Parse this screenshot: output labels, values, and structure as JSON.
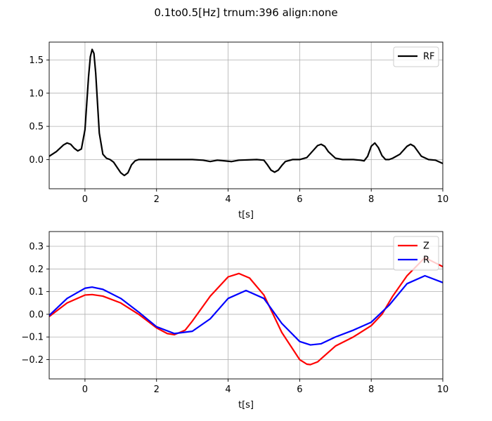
{
  "figure": {
    "title": "0.1to0.5[Hz] trnum:396 align:none"
  },
  "chart_data": [
    {
      "type": "line",
      "xlabel": "t[s]",
      "ylabel": "",
      "xlim": [
        -1,
        10
      ],
      "ylim": [
        -0.44,
        1.77
      ],
      "xticks": [
        0,
        2,
        4,
        6,
        8,
        10
      ],
      "yticks": [
        0.0,
        0.5,
        1.0,
        1.5
      ],
      "xtick_labels": [
        "0",
        "2",
        "4",
        "6",
        "8",
        "10"
      ],
      "ytick_labels": [
        "0.0",
        "0.5",
        "1.0",
        "1.5"
      ],
      "grid": true,
      "legend_position": "top-right",
      "series": [
        {
          "name": "RF",
          "color": "#000000",
          "x": [
            -1.0,
            -0.8,
            -0.6,
            -0.5,
            -0.4,
            -0.3,
            -0.2,
            -0.1,
            0.0,
            0.05,
            0.1,
            0.15,
            0.2,
            0.25,
            0.3,
            0.35,
            0.4,
            0.5,
            0.6,
            0.7,
            0.8,
            0.9,
            1.0,
            1.1,
            1.2,
            1.3,
            1.4,
            1.5,
            1.7,
            2.0,
            2.5,
            3.0,
            3.3,
            3.5,
            3.7,
            3.9,
            4.1,
            4.3,
            4.8,
            5.0,
            5.1,
            5.2,
            5.3,
            5.4,
            5.5,
            5.6,
            5.8,
            6.0,
            6.2,
            6.4,
            6.5,
            6.6,
            6.7,
            6.8,
            7.0,
            7.2,
            7.5,
            7.7,
            7.8,
            7.9,
            8.0,
            8.1,
            8.2,
            8.3,
            8.4,
            8.5,
            8.6,
            8.8,
            9.0,
            9.1,
            9.2,
            9.4,
            9.6,
            9.8,
            10.0
          ],
          "values": [
            0.05,
            0.12,
            0.22,
            0.25,
            0.23,
            0.17,
            0.13,
            0.16,
            0.45,
            0.85,
            1.25,
            1.55,
            1.66,
            1.6,
            1.3,
            0.85,
            0.4,
            0.08,
            0.02,
            0.0,
            -0.04,
            -0.12,
            -0.2,
            -0.24,
            -0.2,
            -0.08,
            -0.02,
            0.0,
            0.0,
            0.0,
            0.0,
            0.0,
            -0.01,
            -0.03,
            -0.01,
            -0.02,
            -0.03,
            -0.01,
            0.0,
            -0.01,
            -0.08,
            -0.16,
            -0.19,
            -0.16,
            -0.09,
            -0.03,
            0.0,
            0.0,
            0.03,
            0.15,
            0.21,
            0.23,
            0.2,
            0.12,
            0.02,
            0.0,
            0.0,
            -0.01,
            -0.02,
            0.05,
            0.2,
            0.25,
            0.18,
            0.06,
            0.0,
            0.0,
            0.02,
            0.08,
            0.2,
            0.23,
            0.2,
            0.05,
            0.0,
            -0.01,
            -0.06
          ]
        }
      ]
    },
    {
      "type": "line",
      "xlabel": "t[s]",
      "ylabel": "",
      "xlim": [
        -1,
        10
      ],
      "ylim": [
        -0.285,
        0.365
      ],
      "xticks": [
        0,
        2,
        4,
        6,
        8,
        10
      ],
      "yticks": [
        -0.2,
        -0.1,
        0.0,
        0.1,
        0.2,
        0.3
      ],
      "xtick_labels": [
        "0",
        "2",
        "4",
        "6",
        "8",
        "10"
      ],
      "ytick_labels": [
        "−0.2",
        "−0.1",
        "0.0",
        "0.1",
        "0.2",
        "0.3"
      ],
      "grid": true,
      "legend_position": "top-right",
      "series": [
        {
          "name": "Z",
          "color": "#ff0000",
          "x": [
            -1.0,
            -0.5,
            0.0,
            0.2,
            0.5,
            1.0,
            1.5,
            2.0,
            2.3,
            2.5,
            2.8,
            3.0,
            3.5,
            4.0,
            4.3,
            4.6,
            5.0,
            5.5,
            6.0,
            6.2,
            6.3,
            6.5,
            7.0,
            7.5,
            8.0,
            8.3,
            8.6,
            9.0,
            9.5,
            10.0
          ],
          "values": [
            -0.01,
            0.05,
            0.085,
            0.087,
            0.08,
            0.05,
            0.0,
            -0.06,
            -0.085,
            -0.09,
            -0.07,
            -0.03,
            0.08,
            0.165,
            0.18,
            0.16,
            0.085,
            -0.08,
            -0.2,
            -0.22,
            -0.222,
            -0.21,
            -0.14,
            -0.1,
            -0.05,
            0.0,
            0.08,
            0.17,
            0.25,
            0.21
          ]
        },
        {
          "name": "R",
          "color": "#0000ff",
          "x": [
            -1.0,
            -0.5,
            0.0,
            0.2,
            0.5,
            1.0,
            1.5,
            2.0,
            2.5,
            3.0,
            3.5,
            4.0,
            4.5,
            5.0,
            5.5,
            6.0,
            6.3,
            6.6,
            7.0,
            7.5,
            8.0,
            8.5,
            9.0,
            9.5,
            10.0
          ],
          "values": [
            -0.005,
            0.07,
            0.115,
            0.12,
            0.11,
            0.07,
            0.01,
            -0.055,
            -0.085,
            -0.075,
            -0.02,
            0.07,
            0.105,
            0.07,
            -0.04,
            -0.12,
            -0.135,
            -0.13,
            -0.1,
            -0.07,
            -0.035,
            0.04,
            0.135,
            0.17,
            0.14
          ]
        }
      ]
    }
  ]
}
